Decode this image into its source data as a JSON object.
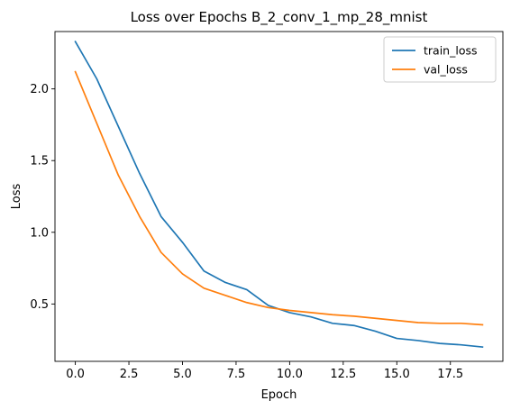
{
  "chart_data": {
    "type": "line",
    "title": "Loss over Epochs B_2_conv_1_mp_28_mnist",
    "xlabel": "Epoch",
    "ylabel": "Loss",
    "xlim": [
      -0.95,
      19.95
    ],
    "ylim": [
      0.1,
      2.4
    ],
    "xticks": [
      0.0,
      2.5,
      5.0,
      7.5,
      10.0,
      12.5,
      15.0,
      17.5
    ],
    "xtick_labels": [
      "0.0",
      "2.5",
      "5.0",
      "7.5",
      "10.0",
      "12.5",
      "15.0",
      "17.5"
    ],
    "yticks": [
      0.5,
      1.0,
      1.5,
      2.0
    ],
    "ytick_labels": [
      "0.5",
      "1.0",
      "1.5",
      "2.0"
    ],
    "grid": false,
    "legend_position": "top-right",
    "x": [
      0,
      1,
      2,
      3,
      4,
      5,
      6,
      7,
      8,
      9,
      10,
      11,
      12,
      13,
      14,
      15,
      16,
      17,
      18,
      19
    ],
    "series": [
      {
        "name": "train_loss",
        "color": "#1f77b4",
        "values": [
          2.33,
          2.07,
          1.74,
          1.41,
          1.11,
          0.93,
          0.73,
          0.65,
          0.6,
          0.49,
          0.44,
          0.41,
          0.365,
          0.35,
          0.31,
          0.26,
          0.245,
          0.225,
          0.215,
          0.2
        ]
      },
      {
        "name": "val_loss",
        "color": "#ff7f0e",
        "values": [
          2.12,
          1.76,
          1.4,
          1.11,
          0.86,
          0.71,
          0.61,
          0.56,
          0.51,
          0.475,
          0.455,
          0.44,
          0.425,
          0.415,
          0.4,
          0.385,
          0.37,
          0.365,
          0.365,
          0.355
        ]
      }
    ]
  }
}
